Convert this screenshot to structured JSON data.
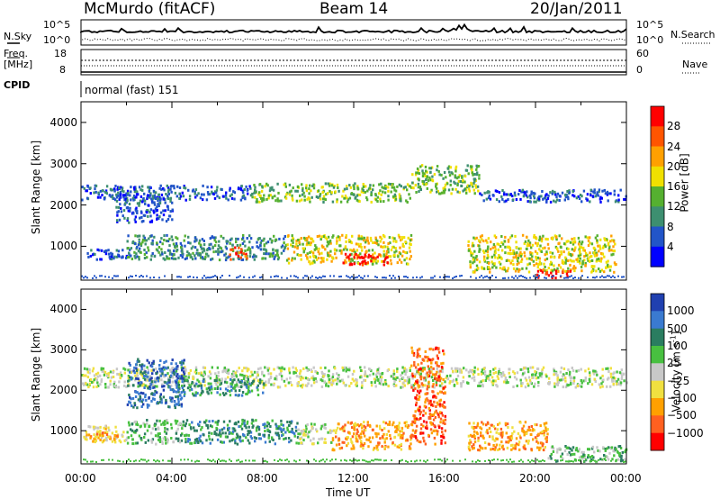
{
  "header": {
    "station": "McMurdo (fitACF)",
    "beam": "Beam 14",
    "date": "20/Jan/2011"
  },
  "status_panel": {
    "nsky_label": "N.Sky",
    "nsky_ticks": [
      "10^5",
      "10^0"
    ],
    "nsearch_label": "N.Search",
    "nsearch_ticks": [
      "10^5",
      "10^0"
    ],
    "freq_label": "Freq.",
    "freq_unit": "[MHz]",
    "freq_ticks": [
      "18",
      "8"
    ],
    "nave_label": "Nave",
    "nave_ticks": [
      "60",
      "0"
    ],
    "cpid_label": "CPID",
    "cpid_value": "normal (fast) 151"
  },
  "colors": {
    "power_scale": [
      "#0000ff",
      "#2255c8",
      "#3d8f70",
      "#55b030",
      "#f0e000",
      "#ffa000",
      "#ff5500",
      "#ff0000"
    ],
    "velocity_scale": [
      "#2040b0",
      "#3a7ad0",
      "#2a7d60",
      "#48c040",
      "#c8c8c8",
      "#f0e040",
      "#ffa000",
      "#ff6020",
      "#ff0000"
    ]
  },
  "chart_data": [
    {
      "type": "heatmap",
      "name": "power",
      "ylabel": "Slant Range [km]",
      "ylim": [
        180,
        4500
      ],
      "yticks": [
        "4000",
        "3000",
        "2000",
        "1000"
      ],
      "xlim": [
        0,
        24
      ],
      "colorbar_label": "Power [dB]",
      "colorbar_ticks": [
        "28",
        "24",
        "20",
        "16",
        "12",
        "8",
        "4"
      ],
      "bands": [
        {
          "x": [
            0.0,
            7.5
          ],
          "y": [
            2150,
            2500
          ],
          "level": 1
        },
        {
          "x": [
            7.5,
            14.5
          ],
          "y": [
            2100,
            2550
          ],
          "level": 3
        },
        {
          "x": [
            14.5,
            17.5
          ],
          "y": [
            2300,
            3000
          ],
          "level": 3
        },
        {
          "x": [
            17.5,
            24.0
          ],
          "y": [
            2100,
            2400
          ],
          "level": 1
        },
        {
          "x": [
            1.5,
            4.0
          ],
          "y": [
            1600,
            2300
          ],
          "level": 1
        },
        {
          "x": [
            0.0,
            2.0
          ],
          "y": [
            700,
            950
          ],
          "level": 1
        },
        {
          "x": [
            2.0,
            9.0
          ],
          "y": [
            700,
            1300
          ],
          "level": 2
        },
        {
          "x": [
            6.5,
            7.3
          ],
          "y": [
            700,
            1000
          ],
          "level": 6
        },
        {
          "x": [
            9.0,
            14.5
          ],
          "y": [
            600,
            1300
          ],
          "level": 4
        },
        {
          "x": [
            11.5,
            13.5
          ],
          "y": [
            580,
            850
          ],
          "level": 7
        },
        {
          "x": [
            17.0,
            23.5
          ],
          "y": [
            400,
            1300
          ],
          "level": 4
        },
        {
          "x": [
            20.0,
            21.5
          ],
          "y": [
            250,
            450
          ],
          "level": 7
        }
      ]
    },
    {
      "type": "heatmap",
      "name": "velocity",
      "ylabel": "Slant Range [km]",
      "ylim": [
        180,
        4500
      ],
      "yticks": [
        "4000",
        "3000",
        "2000",
        "1000"
      ],
      "xlim": [
        0,
        24
      ],
      "xticks": [
        "00:00",
        "04:00",
        "08:00",
        "12:00",
        "16:00",
        "20:00",
        "00:00"
      ],
      "xlabel": "Time UT",
      "colorbar_label": "Velocity [m s",
      "colorbar_unit_exp": "-1",
      "colorbar_close": "]",
      "colorbar_ticks": [
        "1000",
        "500",
        "100",
        "25",
        "−25",
        "−100",
        "−500",
        "−1000"
      ],
      "bands": [
        {
          "x": [
            0.0,
            24.0
          ],
          "y": [
            2100,
            2600
          ],
          "level": 4
        },
        {
          "x": [
            2.0,
            4.5
          ],
          "y": [
            1600,
            2800
          ],
          "level": 1
        },
        {
          "x": [
            4.5,
            8.0
          ],
          "y": [
            1900,
            2300
          ],
          "level": 2
        },
        {
          "x": [
            0.0,
            2.0
          ],
          "y": [
            750,
            1150
          ],
          "level": 5
        },
        {
          "x": [
            0.3,
            1.6
          ],
          "y": [
            800,
            1000
          ],
          "level": 6
        },
        {
          "x": [
            2.0,
            4.5
          ],
          "y": [
            700,
            1300
          ],
          "level": 3
        },
        {
          "x": [
            4.5,
            9.5
          ],
          "y": [
            700,
            1300
          ],
          "level": 2
        },
        {
          "x": [
            9.5,
            11.0
          ],
          "y": [
            700,
            1200
          ],
          "level": 4
        },
        {
          "x": [
            11.0,
            14.5
          ],
          "y": [
            550,
            1250
          ],
          "level": 6
        },
        {
          "x": [
            14.5,
            16.0
          ],
          "y": [
            700,
            3100
          ],
          "level": 7
        },
        {
          "x": [
            17.0,
            20.5
          ],
          "y": [
            550,
            1250
          ],
          "level": 6
        },
        {
          "x": [
            20.5,
            24.0
          ],
          "y": [
            250,
            650
          ],
          "level": 3
        }
      ]
    }
  ]
}
